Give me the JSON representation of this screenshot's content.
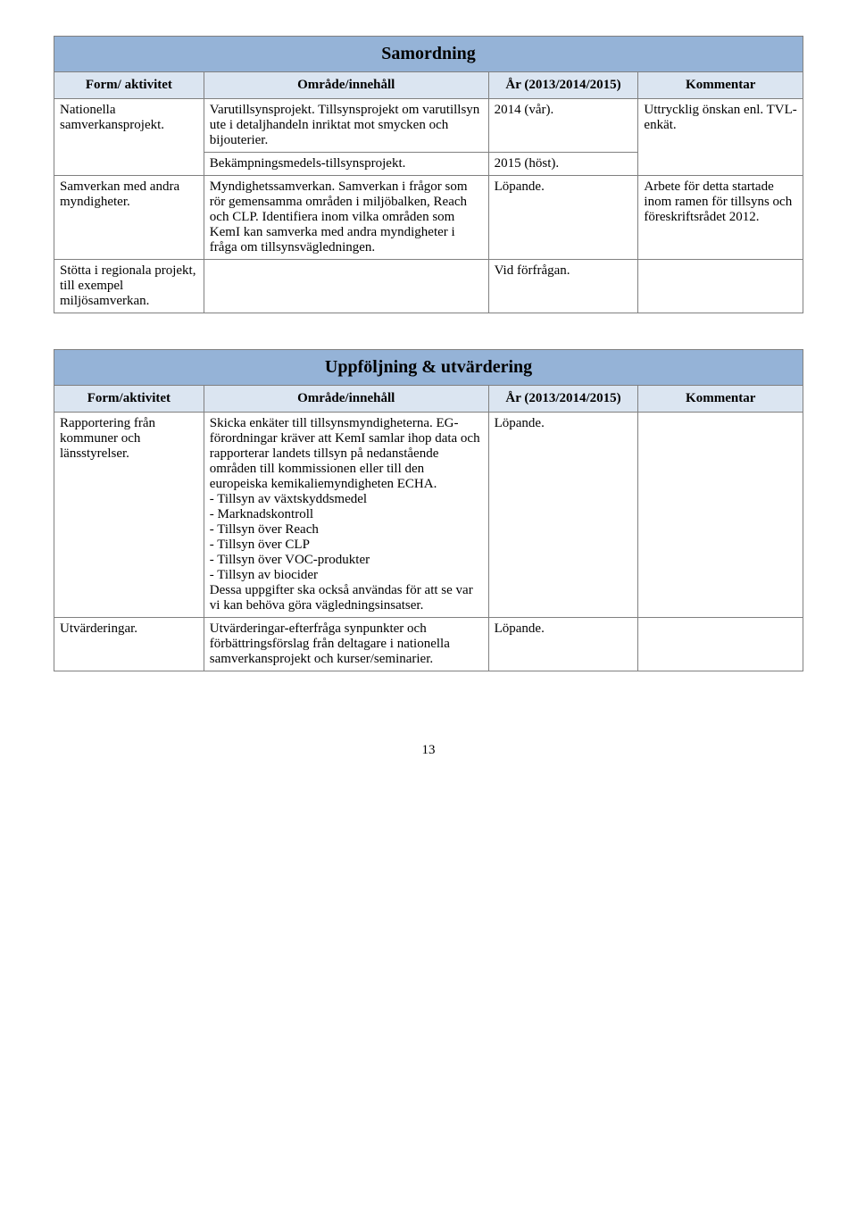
{
  "table1": {
    "title": "Samordning",
    "headers": [
      "Form/ aktivitet",
      "Område/innehåll",
      "År (2013/2014/2015)",
      "Kommentar"
    ],
    "rows": [
      {
        "c0": "Nationella samverkansprojekt.",
        "c1": "Varutillsynsprojekt. Tillsynsprojekt om varutillsyn ute i detaljhandeln inriktat mot smycken och bijouterier.",
        "c2": "2014 (vår).",
        "c3": "Uttrycklig önskan enl. TVL-enkät.",
        "rowspan0": 2
      },
      {
        "c1": "Bekämpningsmedels-tillsynsprojekt.",
        "c2": "2015 (höst).",
        "c3": "",
        "rowspan3": 2
      },
      {
        "c0": "Samverkan med andra myndigheter.",
        "c1": "Myndighetssamverkan. Samverkan i frågor som rör gemensamma områden i miljöbalken, Reach och CLP. Identifiera inom vilka områden som KemI kan samverka med andra myndigheter i fråga om tillsynsvägledningen.",
        "c2": "Löpande.",
        "c3": "Arbete för detta startade inom ramen för tillsyns och föreskriftsrådet 2012."
      },
      {
        "c0": "Stötta i regionala projekt, till exempel miljösamverkan.",
        "c1": "",
        "c2": "Vid förfrågan.",
        "c3": ""
      }
    ]
  },
  "table2": {
    "title": "Uppföljning & utvärdering",
    "headers": [
      "Form/aktivitet",
      "Område/innehåll",
      "År (2013/2014/2015)",
      "Kommentar"
    ],
    "rows": [
      {
        "c0": "Rapportering från kommuner och länsstyrelser.",
        "c1": "Skicka enkäter till tillsynsmyndigheterna. EG-förordningar kräver att KemI samlar ihop data och rapporterar landets tillsyn på nedanstående områden till kommissionen eller till den europeiska kemikaliemyndigheten ECHA.\n - Tillsyn av växtskyddsmedel\n - Marknadskontroll\n - Tillsyn över Reach\n - Tillsyn över CLP\n - Tillsyn över VOC-produkter\n - Tillsyn av biocider\nDessa uppgifter ska också användas för att se var vi kan behöva göra vägledningsinsatser.",
        "c2": "Löpande.",
        "c3": ""
      },
      {
        "c0": "Utvärderingar.",
        "c1": "Utvärderingar-efterfråga synpunkter och förbättringsförslag från deltagare i nationella samverkansprojekt och kurser/seminarier.",
        "c2": "Löpande.",
        "c3": ""
      }
    ]
  },
  "page_number": "13"
}
